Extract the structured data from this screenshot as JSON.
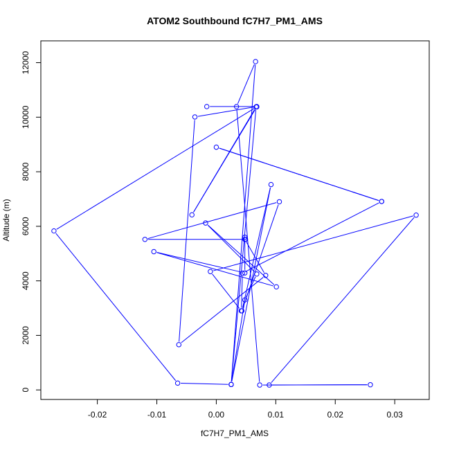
{
  "chart_data": {
    "type": "line",
    "title": "ATOM2 Southbound fC7H7_PM1_AMS",
    "xlabel": "fC7H7_PM1_AMS",
    "ylabel": "Altitude (m)",
    "xlim": [
      -0.0295,
      0.0358
    ],
    "ylim": [
      -350,
      12800
    ],
    "x_ticks": [
      -0.02,
      -0.01,
      0.0,
      0.01,
      0.02,
      0.03
    ],
    "x_tick_labels": [
      "-0.02",
      "-0.01",
      "0.00",
      "0.01",
      "0.02",
      "0.03"
    ],
    "y_ticks": [
      0,
      2000,
      4000,
      6000,
      8000,
      10000,
      12000
    ],
    "y_tick_labels": [
      "0",
      "2000",
      "4000",
      "6000",
      "8000",
      "10000",
      "12000"
    ],
    "grid": false,
    "legend": "none",
    "series": [
      {
        "color": "#0000ff",
        "marker": "open-circle",
        "points": [
          [
            0.0025,
            200
          ],
          [
            0.0092,
            7530
          ],
          [
            0.0043,
            2900
          ],
          [
            0.0106,
            6900
          ],
          [
            -0.012,
            5520
          ],
          [
            0.0049,
            5520
          ],
          [
            0.0048,
            5600
          ],
          [
            0.0048,
            4290
          ],
          [
            -0.0105,
            5070
          ],
          [
            0.0101,
            3780
          ],
          [
            -0.0018,
            6120
          ],
          [
            0.0068,
            4250
          ],
          [
            0.0048,
            3300
          ],
          [
            0.0025,
            200
          ],
          [
            0.0067,
            10380
          ],
          [
            -0.0041,
            6420
          ],
          [
            0.0068,
            10380
          ],
          [
            -0.0273,
            5830
          ],
          [
            -0.0065,
            250
          ],
          [
            0.0025,
            200
          ],
          [
            0.0066,
            12040
          ],
          [
            0.0034,
            10390
          ],
          [
            0.0073,
            180
          ],
          [
            0.0259,
            190
          ],
          [
            0.0089,
            180
          ],
          [
            0.0336,
            6410
          ],
          [
            -0.001,
            4340
          ],
          [
            0.0042,
            2900
          ],
          [
            0.0044,
            4280
          ],
          [
            0.0278,
            6910
          ],
          [
            0.0,
            8900
          ],
          [
            0.0278,
            6910
          ]
        ]
      },
      {
        "color": "#0000ff",
        "marker": "open-circle",
        "points": [
          [
            -0.0016,
            10390
          ],
          [
            0.0068,
            10390
          ],
          [
            -0.0036,
            10010
          ],
          [
            -0.0063,
            1660
          ],
          [
            0.0083,
            4200
          ],
          [
            0.0048,
            5520
          ]
        ]
      }
    ]
  }
}
